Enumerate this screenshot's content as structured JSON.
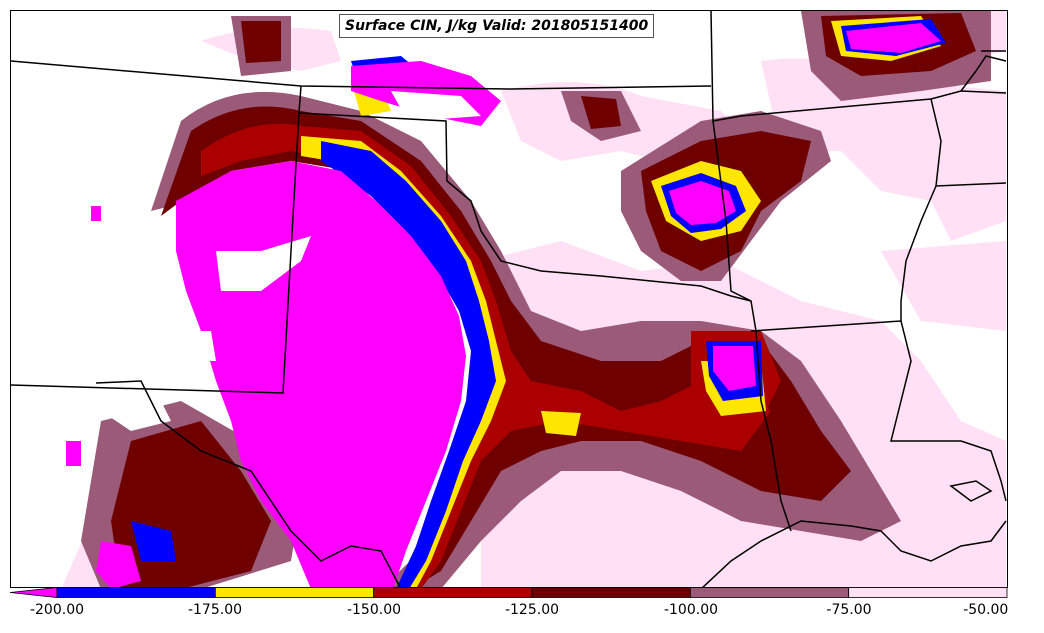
{
  "title": "Surface CIN, J/kg Valid: 201805151400",
  "colorbar": {
    "ticks": [
      "-200.00",
      "-175.00",
      "-150.00",
      "-125.00",
      "-100.00",
      "-75.00",
      "-50.00"
    ],
    "bins": [
      {
        "range": "-200 to -175",
        "color": "#0000ff"
      },
      {
        "range": "-175 to -150",
        "color": "#ffe600"
      },
      {
        "range": "-150 to -125",
        "color": "#aa0000"
      },
      {
        "range": "-125 to -100",
        "color": "#6e0000"
      },
      {
        "range": "-100 to -75",
        "color": "#9a5a78"
      },
      {
        "range": "-75 to -50",
        "color": "#ffe0f5"
      }
    ],
    "under_color": "#ff00ff"
  }
}
